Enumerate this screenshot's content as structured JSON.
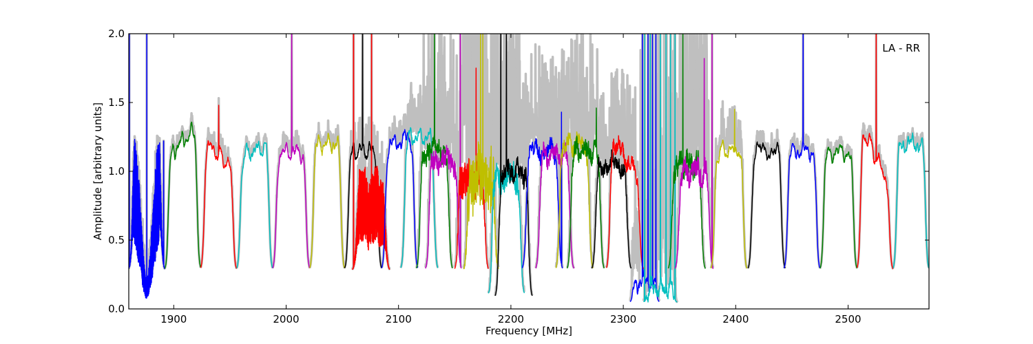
{
  "chart_data": {
    "type": "line",
    "title": "",
    "annotation": "LA - RR",
    "xlabel": "Frequency [MHz]",
    "ylabel": "Amplitude [arbitrary units]",
    "xlim": [
      1860,
      2572
    ],
    "ylim": [
      0.0,
      2.0
    ],
    "xticks": [
      "1900",
      "2000",
      "2100",
      "2200",
      "2300",
      "2400",
      "2500"
    ],
    "yticks": [
      "0.0",
      "0.5",
      "1.0",
      "1.5",
      "2.0"
    ],
    "grid": false,
    "background_series_color": "#bfbfbf",
    "bands": [
      {
        "f0": 1860,
        "f1": 1892,
        "color": "#0000ff",
        "level": 1.05,
        "dip": 0.85,
        "osc": 0.5,
        "gray": 0.05,
        "spikes": [
          [
            1860.5,
            2.0
          ],
          [
            1876,
            2.0
          ],
          [
            1891,
            1.22
          ]
        ]
      },
      {
        "f0": 1892,
        "f1": 1924,
        "color": "#008000",
        "level": 1.22,
        "tilt": 0.25,
        "gray": 0.02
      },
      {
        "f0": 1924,
        "f1": 1956,
        "color": "#ff0000",
        "level": 1.12,
        "tilt": -0.25,
        "gray": 0.04,
        "spikes": [
          [
            1940,
            1.48
          ]
        ]
      },
      {
        "f0": 1956,
        "f1": 1988,
        "color": "#00bfbf",
        "level": 1.15,
        "tilt": 0.1,
        "gray": 0.02
      },
      {
        "f0": 1988,
        "f1": 2021,
        "color": "#bf00bf",
        "level": 1.14,
        "gray": 0.04,
        "spikes": [
          [
            2005,
            2.0
          ]
        ]
      },
      {
        "f0": 2021,
        "f1": 2052,
        "color": "#bfbf00",
        "level": 1.2,
        "gray": 0.03
      },
      {
        "f0": 2052,
        "f1": 2085,
        "color": "#000000",
        "level": 1.15,
        "gray": 0.08,
        "spikes": [
          [
            2068,
            2.0
          ]
        ]
      },
      {
        "f0": 2059,
        "f1": 2092,
        "color": "#ff0000",
        "level": 0.72,
        "osc": 0.35,
        "gray": 0.1,
        "spikes": [
          [
            2060,
            2.0
          ],
          [
            2076,
            2.0
          ]
        ]
      },
      {
        "f0": 2085,
        "f1": 2117,
        "color": "#0000ff",
        "level": 1.22,
        "tilt": 0.1,
        "gray": 0.05
      },
      {
        "f0": 2102,
        "f1": 2135,
        "color": "#00bfbf",
        "level": 1.25,
        "gray": 0.12
      },
      {
        "f0": 2116,
        "f1": 2148,
        "color": "#008000",
        "level": 1.15,
        "noise": 0.06,
        "gray": 0.35,
        "spikes": [
          [
            2132,
            2.0
          ]
        ]
      },
      {
        "f0": 2124,
        "f1": 2156,
        "color": "#bf00bf",
        "level": 1.08,
        "noise": 0.07,
        "gray": 0.4,
        "spikes": [
          [
            2155,
            2.0
          ]
        ]
      },
      {
        "f0": 2150,
        "f1": 2180,
        "color": "#ff0000",
        "level": 0.95,
        "noise": 0.12,
        "gray": 0.8,
        "spikes": [
          [
            2169,
            1.75
          ]
        ]
      },
      {
        "f0": 2158,
        "f1": 2189,
        "color": "#bfbf00",
        "level": 0.95,
        "noise": 0.25,
        "gray": 0.8,
        "spikes": [
          [
            2173,
            2.0
          ],
          [
            2175,
            2.0
          ]
        ]
      },
      {
        "f0": 2180,
        "f1": 2212,
        "color": "#00bfbf",
        "level": 0.95,
        "noise": 0.08,
        "gray": 0.5,
        "low": 0.1
      },
      {
        "f0": 2186,
        "f1": 2219,
        "color": "#000000",
        "level": 1.0,
        "noise": 0.06,
        "gray": 0.3,
        "low": 0.08,
        "spikes": [
          [
            2191,
            2.0
          ],
          [
            2196,
            2.0
          ]
        ]
      },
      {
        "f0": 2210,
        "f1": 2246,
        "color": "#0000ff",
        "level": 1.15,
        "noise": 0.05,
        "gray": 0.25,
        "spikes": [
          [
            2245,
            1.43
          ]
        ]
      },
      {
        "f0": 2222,
        "f1": 2256,
        "color": "#bf00bf",
        "level": 1.12,
        "noise": 0.05,
        "gray": 0.2
      },
      {
        "f0": 2240,
        "f1": 2273,
        "color": "#bfbf00",
        "level": 1.2,
        "noise": 0.05,
        "gray": 0.3
      },
      {
        "f0": 2250,
        "f1": 2283,
        "color": "#008000",
        "level": 1.15,
        "noise": 0.06,
        "gray": 0.3,
        "spikes": [
          [
            2276,
            1.46
          ]
        ]
      },
      {
        "f0": 2272,
        "f1": 2307,
        "color": "#000000",
        "level": 1.05,
        "noise": 0.05,
        "gray": 0.2
      },
      {
        "f0": 2285,
        "f1": 2318,
        "color": "#ff0000",
        "level": 1.1,
        "tilt": -0.4,
        "noise": 0.04,
        "gray": 0.2
      },
      {
        "f0": 2306,
        "f1": 2332,
        "color": "#0000ff",
        "level": 0.2,
        "noise": 0.02,
        "gray": 0.6,
        "low": 0.05,
        "spikes": [
          [
            2317,
            2.0
          ],
          [
            2322,
            2.0
          ],
          [
            2326,
            2.0
          ],
          [
            2329,
            2.0
          ]
        ]
      },
      {
        "f0": 2318,
        "f1": 2348,
        "color": "#00bfbf",
        "level": 0.15,
        "noise": 0.03,
        "gray": 0.8,
        "low": 0.05,
        "spikes": [
          [
            2319,
            2.0
          ],
          [
            2324,
            2.0
          ],
          [
            2333,
            2.0
          ],
          [
            2338,
            2.0
          ],
          [
            2342,
            2.0
          ],
          [
            2346,
            2.0
          ]
        ]
      },
      {
        "f0": 2340,
        "f1": 2373,
        "color": "#008000",
        "level": 1.05,
        "noise": 0.08,
        "gray": 0.5,
        "spikes": [
          [
            2353,
            2.0
          ]
        ]
      },
      {
        "f0": 2346,
        "f1": 2380,
        "color": "#bf00bf",
        "level": 1.0,
        "noise": 0.07,
        "gray": 0.4,
        "spikes": [
          [
            2372,
            1.82
          ],
          [
            2379,
            2.0
          ]
        ]
      },
      {
        "f0": 2378,
        "f1": 2410,
        "color": "#bfbf00",
        "level": 1.15,
        "gray": 0.1,
        "spikes": [
          [
            2399,
            1.45
          ]
        ]
      },
      {
        "f0": 2411,
        "f1": 2444,
        "color": "#000000",
        "level": 1.15,
        "gray": 0.03
      },
      {
        "f0": 2443,
        "f1": 2475,
        "color": "#0000ff",
        "level": 1.15,
        "gray": 0.03,
        "spikes": [
          [
            2460,
            2.0
          ]
        ]
      },
      {
        "f0": 2475,
        "f1": 2508,
        "color": "#008000",
        "level": 1.14,
        "gray": 0.02
      },
      {
        "f0": 2508,
        "f1": 2540,
        "color": "#ff0000",
        "level": 1.12,
        "tilt": -0.55,
        "gray": 0.03,
        "spikes": [
          [
            2525,
            2.0
          ]
        ]
      },
      {
        "f0": 2540,
        "f1": 2572,
        "color": "#00bfbf",
        "level": 1.2,
        "gray": 0.02
      }
    ]
  }
}
